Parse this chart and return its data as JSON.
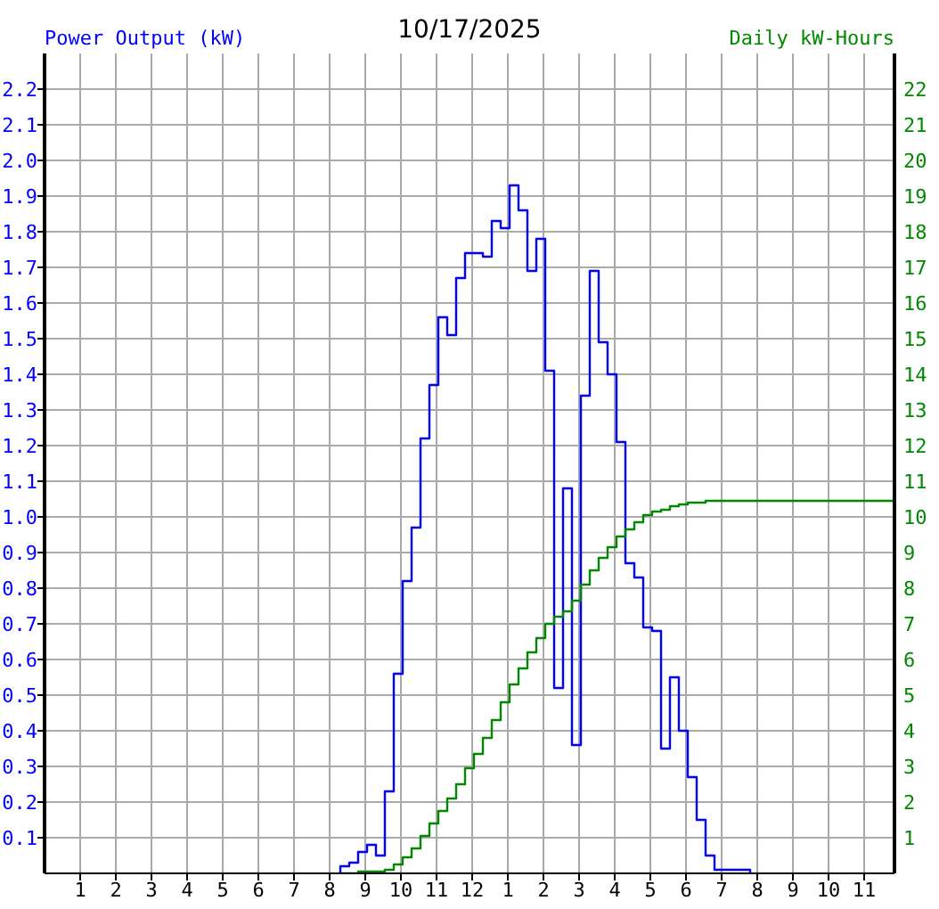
{
  "chart_data": {
    "type": "step",
    "title": "10/17/2025",
    "ylabel": "Power Output (kW)",
    "y2label": "Daily kW-Hours",
    "xlim": [
      "2025-10-17T00:00",
      "2025-10-17T23:51"
    ],
    "xticks": [
      {
        "value": "2025-10-17T01:00",
        "label": "1"
      },
      {
        "value": "2025-10-17T02:00",
        "label": "2"
      },
      {
        "value": "2025-10-17T03:00",
        "label": "3"
      },
      {
        "value": "2025-10-17T04:00",
        "label": "4"
      },
      {
        "value": "2025-10-17T05:00",
        "label": "5"
      },
      {
        "value": "2025-10-17T06:00",
        "label": "6"
      },
      {
        "value": "2025-10-17T07:00",
        "label": "7"
      },
      {
        "value": "2025-10-17T08:00",
        "label": "8"
      },
      {
        "value": "2025-10-17T09:00",
        "label": "9"
      },
      {
        "value": "2025-10-17T10:00",
        "label": "10"
      },
      {
        "value": "2025-10-17T11:00",
        "label": "11"
      },
      {
        "value": "2025-10-17T12:00",
        "label": "12"
      },
      {
        "value": "2025-10-17T13:00",
        "label": "1"
      },
      {
        "value": "2025-10-17T14:00",
        "label": "2"
      },
      {
        "value": "2025-10-17T15:00",
        "label": "3"
      },
      {
        "value": "2025-10-17T16:00",
        "label": "4"
      },
      {
        "value": "2025-10-17T17:00",
        "label": "5"
      },
      {
        "value": "2025-10-17T18:00",
        "label": "6"
      },
      {
        "value": "2025-10-17T19:00",
        "label": "7"
      },
      {
        "value": "2025-10-17T20:00",
        "label": "8"
      },
      {
        "value": "2025-10-17T21:00",
        "label": "9"
      },
      {
        "value": "2025-10-17T22:00",
        "label": "10"
      },
      {
        "value": "2025-10-17T23:00",
        "label": "11"
      }
    ],
    "ylim": [
      0,
      2.3
    ],
    "yticks": [
      0.1,
      0.2,
      0.3,
      0.4,
      0.5,
      0.6,
      0.7,
      0.8,
      0.9,
      {
        "value": 1,
        "label": "1.0"
      },
      1.1,
      1.2,
      1.3,
      1.4,
      1.5,
      1.6,
      1.7,
      1.8,
      1.9,
      {
        "value": 2,
        "label": "2.0"
      },
      2.1,
      2.2
    ],
    "y2lim": [
      0,
      23
    ],
    "y2ticks": [
      1,
      2,
      3,
      4,
      5,
      6,
      7,
      8,
      9,
      10,
      11,
      12,
      13,
      14,
      15,
      16,
      17,
      18,
      19,
      20,
      21,
      22
    ],
    "grid": true,
    "marker": "none",
    "line_style": "solid",
    "series": [
      {
        "color": "#0000ff",
        "x": [
          "2025-10-17T08:15",
          "2025-10-17T08:18",
          "2025-10-17T08:33",
          "2025-10-17T08:48",
          "2025-10-17T09:03",
          "2025-10-17T09:18",
          "2025-10-17T09:33",
          "2025-10-17T09:48",
          "2025-10-17T10:03",
          "2025-10-17T10:18",
          "2025-10-17T10:33",
          "2025-10-17T10:48",
          "2025-10-17T11:03",
          "2025-10-17T11:18",
          "2025-10-17T11:33",
          "2025-10-17T11:48",
          "2025-10-17T12:03",
          "2025-10-17T12:18",
          "2025-10-17T12:33",
          "2025-10-17T12:48",
          "2025-10-17T13:03",
          "2025-10-17T13:18",
          "2025-10-17T13:33",
          "2025-10-17T13:48",
          "2025-10-17T14:03",
          "2025-10-17T14:18",
          "2025-10-17T14:33",
          "2025-10-17T14:48",
          "2025-10-17T15:03",
          "2025-10-17T15:18",
          "2025-10-17T15:33",
          "2025-10-17T15:48",
          "2025-10-17T16:03",
          "2025-10-17T16:18",
          "2025-10-17T16:33",
          "2025-10-17T16:48",
          "2025-10-17T17:03",
          "2025-10-17T17:18",
          "2025-10-17T17:33",
          "2025-10-17T17:48",
          "2025-10-17T18:03",
          "2025-10-17T18:18",
          "2025-10-17T18:33",
          "2025-10-17T18:48",
          "2025-10-17T19:48"
        ],
        "values": [
          0,
          0.02,
          0.03,
          0.06,
          0.08,
          0.05,
          0.23,
          0.56,
          0.82,
          0.97,
          1.22,
          1.37,
          1.56,
          1.51,
          1.67,
          1.74,
          1.74,
          1.73,
          1.83,
          1.81,
          1.93,
          1.86,
          1.69,
          1.78,
          1.41,
          0.52,
          1.08,
          0.36,
          1.34,
          1.69,
          1.49,
          1.4,
          1.21,
          0.87,
          0.83,
          0.69,
          0.68,
          0.35,
          0.55,
          0.4,
          0.27,
          0.15,
          0.05,
          0.01,
          0
        ]
      },
      {
        "color": "#008800",
        "axis": "y2",
        "x": [
          "2025-10-17T08:18",
          "2025-10-17T08:33",
          "2025-10-17T08:48",
          "2025-10-17T09:03",
          "2025-10-17T09:18",
          "2025-10-17T09:33",
          "2025-10-17T09:48",
          "2025-10-17T10:03",
          "2025-10-17T10:18",
          "2025-10-17T10:33",
          "2025-10-17T10:48",
          "2025-10-17T11:03",
          "2025-10-17T11:18",
          "2025-10-17T11:33",
          "2025-10-17T11:48",
          "2025-10-17T12:03",
          "2025-10-17T12:18",
          "2025-10-17T12:33",
          "2025-10-17T12:48",
          "2025-10-17T13:03",
          "2025-10-17T13:18",
          "2025-10-17T13:33",
          "2025-10-17T13:48",
          "2025-10-17T14:03",
          "2025-10-17T14:18",
          "2025-10-17T14:33",
          "2025-10-17T14:48",
          "2025-10-17T15:03",
          "2025-10-17T15:18",
          "2025-10-17T15:33",
          "2025-10-17T15:48",
          "2025-10-17T16:03",
          "2025-10-17T16:18",
          "2025-10-17T16:33",
          "2025-10-17T16:48",
          "2025-10-17T17:03",
          "2025-10-17T17:18",
          "2025-10-17T17:33",
          "2025-10-17T17:48",
          "2025-10-17T18:03",
          "2025-10-17T18:18",
          "2025-10-17T18:33",
          "2025-10-17T18:48",
          "2025-10-17T19:03",
          "2025-10-17T23:51"
        ],
        "values": [
          0,
          0,
          0.05,
          0.05,
          0.05,
          0.1,
          0.25,
          0.45,
          0.7,
          1.05,
          1.4,
          1.75,
          2.1,
          2.5,
          2.95,
          3.35,
          3.8,
          4.3,
          4.8,
          5.3,
          5.75,
          6.2,
          6.6,
          7.0,
          7.2,
          7.35,
          7.65,
          8.1,
          8.5,
          8.85,
          9.15,
          9.45,
          9.65,
          9.85,
          10.05,
          10.15,
          10.2,
          10.3,
          10.35,
          10.4,
          10.4,
          10.45,
          10.45,
          10.45,
          10.45
        ]
      }
    ]
  }
}
